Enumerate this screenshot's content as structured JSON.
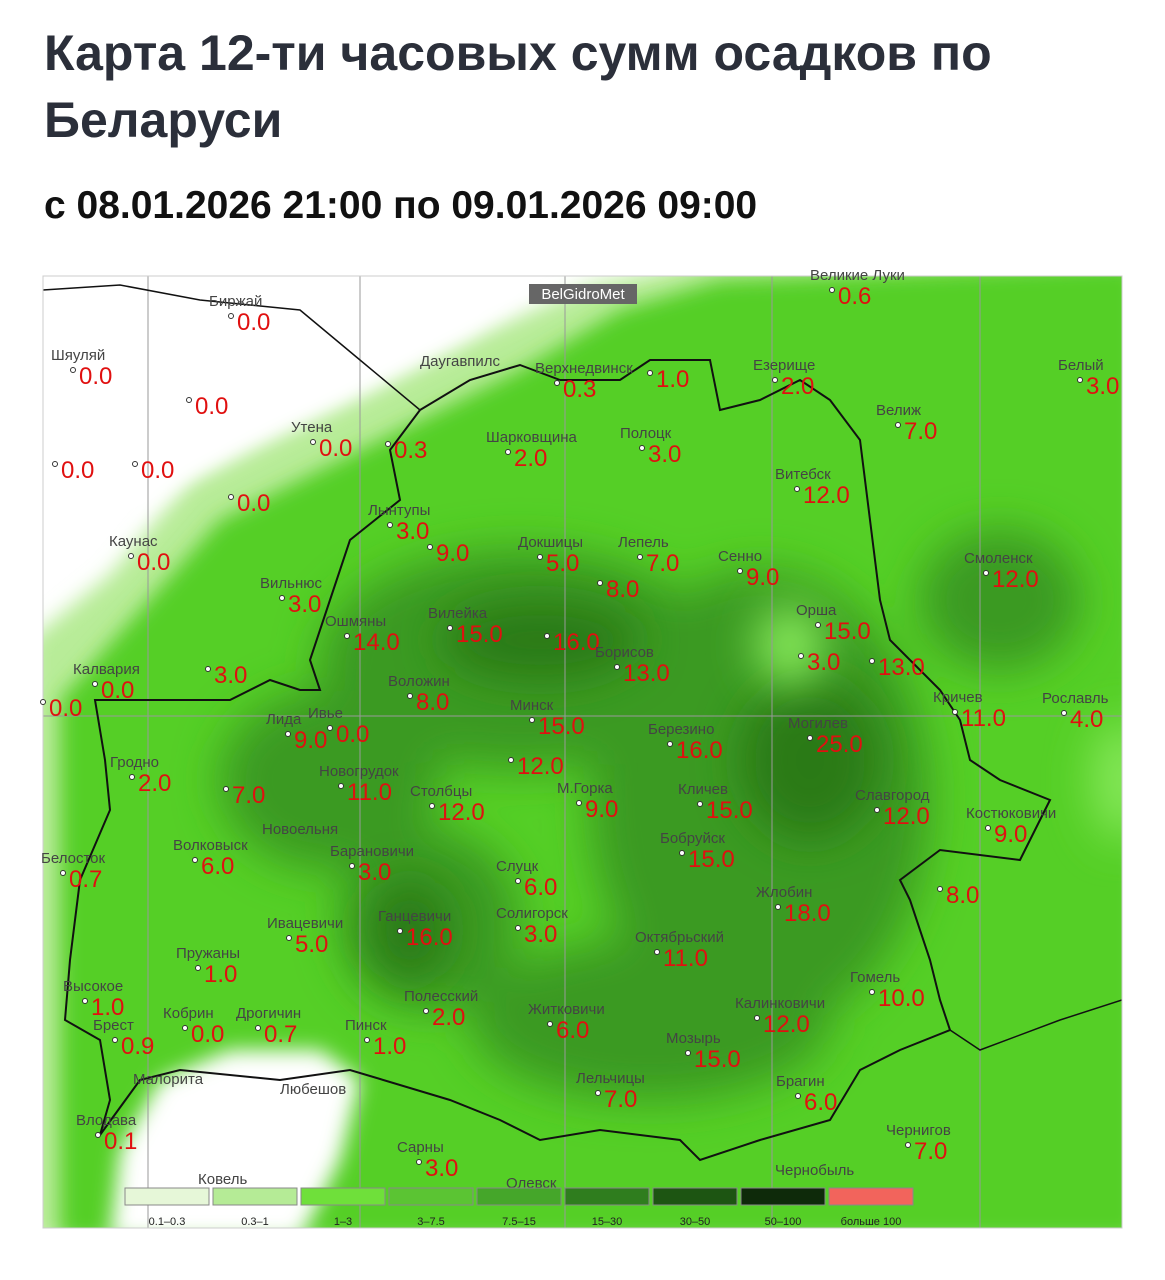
{
  "header": {
    "title": "Карта 12-ти часовых сумм осадков по Беларуси",
    "subtitle": "с 08.01.2026 21:00 по 09.01.2026 09:00"
  },
  "map": {
    "badge": "BelGidroMet",
    "stations": [
      {
        "name": "Биржай",
        "value": "0.0"
      },
      {
        "name": "Шяуляй",
        "value": "0.0"
      },
      {
        "value": "0.0"
      },
      {
        "name": "Утена",
        "value": "0.0"
      },
      {
        "value": "0.0"
      },
      {
        "value": "0.0"
      },
      {
        "value": "0.0"
      },
      {
        "value": "0.3"
      },
      {
        "name": "Верхнедвинск",
        "value": "0.3"
      },
      {
        "value": "1.0"
      },
      {
        "name": "Езерище",
        "value": "2.0"
      },
      {
        "name": "Великие Луки",
        "value": "0.6"
      },
      {
        "name": "Белый",
        "value": "3.0"
      },
      {
        "name": "Велиж",
        "value": "7.0"
      },
      {
        "name": "Шарковщина",
        "value": "2.0"
      },
      {
        "name": "Полоцк",
        "value": "3.0"
      },
      {
        "name": "Витебск",
        "value": "12.0"
      },
      {
        "name": "Лынтупы",
        "value": "3.0"
      },
      {
        "value": "9.0"
      },
      {
        "name": "Докшицы",
        "value": "5.0"
      },
      {
        "name": "Лепель",
        "value": "7.0"
      },
      {
        "value": "8.0"
      },
      {
        "name": "Сенно",
        "value": "9.0"
      },
      {
        "name": "Смоленск",
        "value": "12.0"
      },
      {
        "name": "Каунас",
        "value": "0.0"
      },
      {
        "name": "Вильнюс",
        "value": "3.0"
      },
      {
        "name": "Ошмяны",
        "value": "14.0"
      },
      {
        "name": "Вилейка",
        "value": "15.0"
      },
      {
        "value": "16.0"
      },
      {
        "name": "Борисов",
        "value": "13.0"
      },
      {
        "name": "Орша",
        "value": "15.0"
      },
      {
        "value": "3.0"
      },
      {
        "value": "13.0"
      },
      {
        "name": "Калвария",
        "value": "0.0"
      },
      {
        "value": "0.0"
      },
      {
        "value": "3.0"
      },
      {
        "name": "Воложин",
        "value": "8.0"
      },
      {
        "name": "Минск",
        "value": "15.0"
      },
      {
        "name": "Лида",
        "value": "9.0"
      },
      {
        "name": "Ивье",
        "value": "0.0"
      },
      {
        "name": "Гродно",
        "value": "2.0"
      },
      {
        "value": "7.0"
      },
      {
        "name": "Новогрудок",
        "value": "11.0"
      },
      {
        "name": "Столбцы",
        "value": "12.0"
      },
      {
        "value": "12.0"
      },
      {
        "name": "Березино",
        "value": "16.0"
      },
      {
        "name": "Могилев",
        "value": "25.0"
      },
      {
        "name": "Костюковичи",
        "value": "9.0"
      },
      {
        "name": "Рославль",
        "value": "4.0"
      },
      {
        "name": "Кричев",
        "value": "11.0"
      },
      {
        "name": "М.Горка",
        "value": "9.0"
      },
      {
        "name": "Кличев",
        "value": "15.0"
      },
      {
        "name": "Славгород",
        "value": "12.0"
      },
      {
        "name": "Белосток",
        "value": "0.7"
      },
      {
        "name": "Волковыск",
        "value": "6.0"
      },
      {
        "name": "Барановичи",
        "value": "3.0"
      },
      {
        "name": "Слуцк",
        "value": "6.0"
      },
      {
        "name": "Бобруйск",
        "value": "15.0"
      },
      {
        "name": "Жлобин",
        "value": "18.0"
      },
      {
        "value": "8.0"
      },
      {
        "name": "Ивацевичи",
        "value": "5.0"
      },
      {
        "name": "Ганцевичи",
        "value": "16.0"
      },
      {
        "name": "Солигорск",
        "value": "3.0"
      },
      {
        "name": "Октябрьский",
        "value": "11.0"
      },
      {
        "name": "Гомель",
        "value": "10.0"
      },
      {
        "name": "Пружаны",
        "value": "1.0"
      },
      {
        "name": "Высокое",
        "value": "1.0"
      },
      {
        "name": "Брест",
        "value": "0.9"
      },
      {
        "name": "Кобрин",
        "value": "0.0"
      },
      {
        "name": "Дрогичин",
        "value": "0.7"
      },
      {
        "name": "Пинск",
        "value": "1.0"
      },
      {
        "name": "Полесский",
        "value": "2.0"
      },
      {
        "name": "Житковичи",
        "value": "6.0"
      },
      {
        "name": "Мозырь",
        "value": "15.0"
      },
      {
        "name": "Калинковичи",
        "value": "12.0"
      },
      {
        "name": "Лельчицы",
        "value": "7.0"
      },
      {
        "name": "Брагин",
        "value": "6.0"
      },
      {
        "name": "Чернигов",
        "value": "7.0"
      },
      {
        "name": "Влодава",
        "value": "0.1"
      },
      {
        "name": "Сарны",
        "value": "3.0"
      }
    ],
    "places": [
      "Даугавпилс",
      "Малорита",
      "Любешов",
      "Ковель",
      "Олевск",
      "Чернобыль",
      "Новоельня"
    ],
    "legend": [
      {
        "label": "0.1–0.3",
        "color": "#e6f7d8"
      },
      {
        "label": "0.3–1",
        "color": "#b5eb96"
      },
      {
        "label": "1–3",
        "color": "#6fe03a"
      },
      {
        "label": "3–7.5",
        "color": "#5bc433"
      },
      {
        "label": "7.5–15",
        "color": "#45a62a"
      },
      {
        "label": "15–30",
        "color": "#2f7d1e"
      },
      {
        "label": "30–50",
        "color": "#1d5512"
      },
      {
        "label": "50–100",
        "color": "#0e2a0a"
      },
      {
        "label": "больше 100",
        "color": "#f2645c"
      }
    ]
  }
}
